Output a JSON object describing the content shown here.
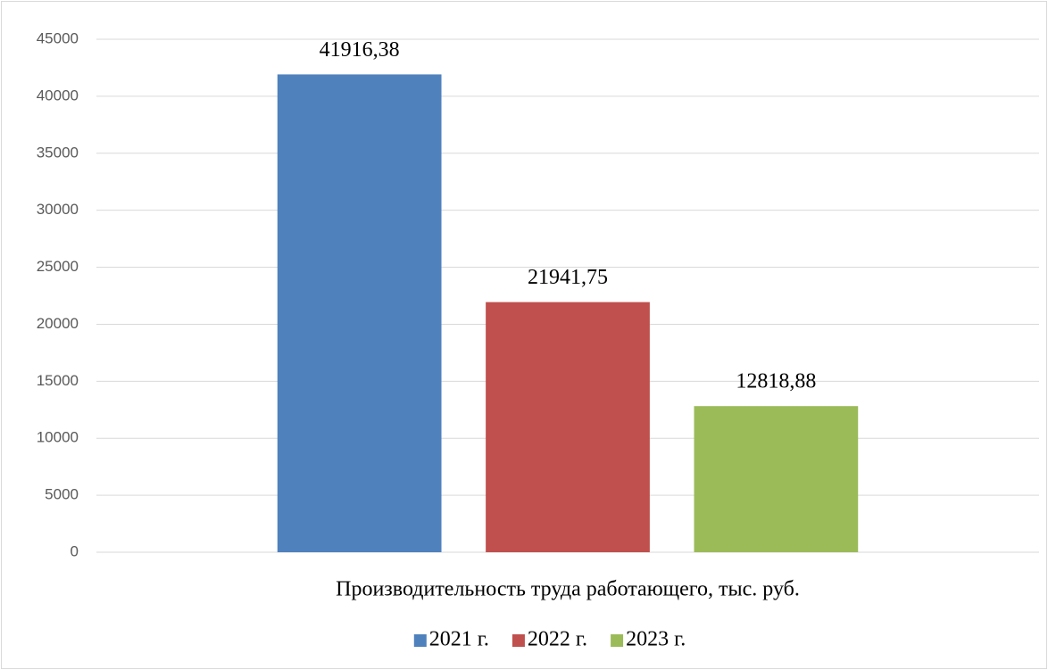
{
  "chart_data": {
    "type": "bar",
    "categories": [
      "Производительность труда работающего, тыс. руб."
    ],
    "series": [
      {
        "name": "2021 г.",
        "color": "#4f81bd",
        "values": [
          41916.38
        ],
        "value_labels": [
          "41916,38"
        ]
      },
      {
        "name": "2022 г.",
        "color": "#c0504d",
        "values": [
          21941.75
        ],
        "value_labels": [
          "21941,75"
        ]
      },
      {
        "name": "2023 г.",
        "color": "#9bbb59",
        "values": [
          12818.88
        ],
        "value_labels": [
          "12818,88"
        ]
      }
    ],
    "ylim": [
      0,
      45000
    ],
    "yticks": [
      0,
      5000,
      10000,
      15000,
      20000,
      25000,
      30000,
      35000,
      40000,
      45000
    ],
    "grid": true,
    "legend": "bottom"
  }
}
